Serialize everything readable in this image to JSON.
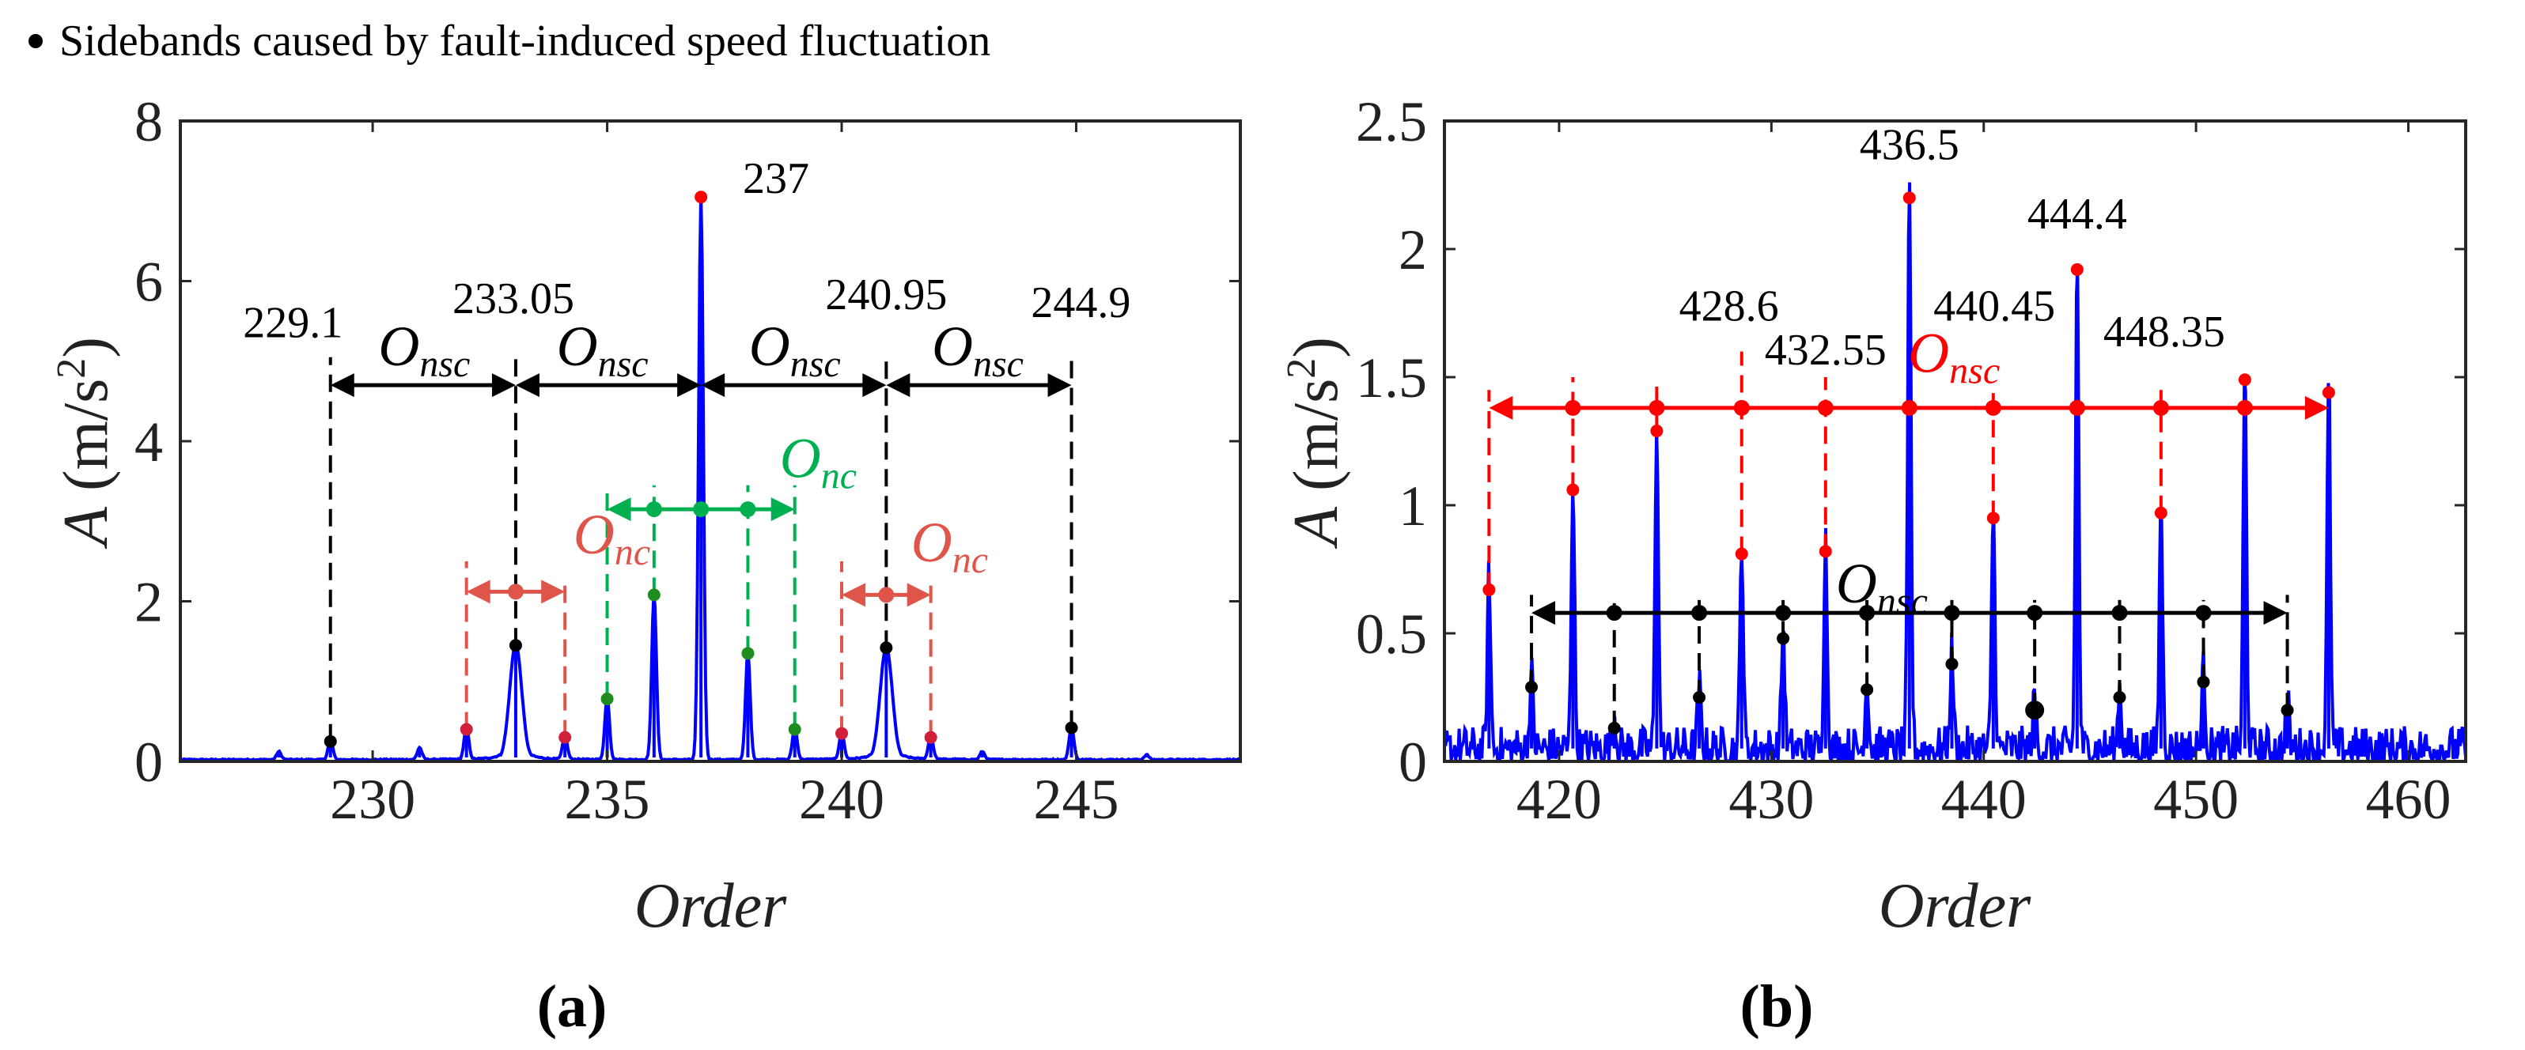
{
  "legend": {
    "text": "Sidebands caused by fault-induced speed fluctuation",
    "marker_color": "#000000"
  },
  "colors": {
    "spectrum": "#0000ff",
    "black": "#000000",
    "coral": "#e0554a",
    "crimson": "#d0203a",
    "green": "#00b050",
    "darkgreen": "#1e8c1e",
    "red": "#ff0000"
  },
  "chart_data": [
    {
      "type": "line",
      "panel": "a",
      "caption": "(a)",
      "xlabel": "Order",
      "ylabel": {
        "main": "A",
        "unit": "(m/s",
        "sup": "2",
        "close": ")"
      },
      "xlim": [
        225.9,
        248.5
      ],
      "ylim": [
        0,
        8
      ],
      "xticks": [
        230,
        235,
        240,
        245
      ],
      "xtick_labels": [
        "230",
        "235",
        "240",
        "245"
      ],
      "yticks": [
        0,
        2,
        4,
        6,
        8
      ],
      "ytick_labels": [
        "0",
        "2",
        "4",
        "6",
        "8"
      ],
      "noise_level": 0.03,
      "peaks": [
        {
          "x": 228.0,
          "y": 0.1
        },
        {
          "x": 229.1,
          "y": 0.25,
          "marker": "black"
        },
        {
          "x": 231.0,
          "y": 0.15
        },
        {
          "x": 232.0,
          "y": 0.4,
          "marker": "crimson"
        },
        {
          "x": 233.05,
          "y": 1.45,
          "marker": "black",
          "wide": true
        },
        {
          "x": 234.1,
          "y": 0.3,
          "marker": "crimson"
        },
        {
          "x": 235.0,
          "y": 0.78,
          "marker": "darkgreen"
        },
        {
          "x": 236.0,
          "y": 2.08,
          "marker": "darkgreen"
        },
        {
          "x": 237.0,
          "y": 7.05,
          "marker": "red"
        },
        {
          "x": 238.0,
          "y": 1.35,
          "marker": "darkgreen"
        },
        {
          "x": 239.0,
          "y": 0.4,
          "marker": "darkgreen"
        },
        {
          "x": 240.0,
          "y": 0.35,
          "marker": "crimson"
        },
        {
          "x": 240.95,
          "y": 1.42,
          "marker": "black",
          "wide": true
        },
        {
          "x": 241.9,
          "y": 0.3,
          "marker": "crimson"
        },
        {
          "x": 243.0,
          "y": 0.1
        },
        {
          "x": 244.9,
          "y": 0.42,
          "marker": "black"
        },
        {
          "x": 246.5,
          "y": 0.06
        }
      ],
      "dashed_lines": [
        {
          "x": 229.1,
          "y0": 0.25,
          "y1": 5.05,
          "color": "black"
        },
        {
          "x": 233.05,
          "y0": 1.45,
          "y1": 5.05,
          "color": "black"
        },
        {
          "x": 240.95,
          "y0": 1.42,
          "y1": 5.05,
          "color": "black"
        },
        {
          "x": 244.9,
          "y0": 0.42,
          "y1": 5.05,
          "color": "black"
        },
        {
          "x": 235.0,
          "y0": 0.78,
          "y1": 3.45,
          "color": "green"
        },
        {
          "x": 236.0,
          "y0": 2.08,
          "y1": 3.45,
          "color": "green"
        },
        {
          "x": 238.0,
          "y0": 1.35,
          "y1": 3.45,
          "color": "green"
        },
        {
          "x": 239.0,
          "y0": 0.4,
          "y1": 3.45,
          "color": "green"
        },
        {
          "x": 232.0,
          "y0": 0.4,
          "y1": 2.5,
          "color": "coral"
        },
        {
          "x": 234.1,
          "y0": 0.3,
          "y1": 2.3,
          "color": "coral"
        },
        {
          "x": 240.0,
          "y0": 0.35,
          "y1": 2.5,
          "color": "coral"
        },
        {
          "x": 241.9,
          "y0": 0.3,
          "y1": 2.3,
          "color": "coral"
        }
      ],
      "arrows": [
        {
          "from": 229.1,
          "to": 233.05,
          "y": 4.7,
          "color": "black",
          "dots": []
        },
        {
          "from": 233.05,
          "to": 237.0,
          "y": 4.7,
          "color": "black",
          "dots": []
        },
        {
          "from": 237.0,
          "to": 240.95,
          "y": 4.7,
          "color": "black",
          "dots": []
        },
        {
          "from": 240.95,
          "to": 244.9,
          "y": 4.7,
          "color": "black",
          "dots": []
        },
        {
          "from": 235.0,
          "to": 239.0,
          "y": 3.15,
          "color": "green",
          "dots": [
            236.0,
            237.0,
            238.0
          ]
        },
        {
          "from": 232.0,
          "to": 234.1,
          "y": 2.12,
          "color": "coral",
          "dots": [
            233.05
          ]
        },
        {
          "from": 240.0,
          "to": 241.9,
          "y": 2.08,
          "color": "coral",
          "dots": [
            240.95
          ]
        }
      ],
      "value_labels": [
        {
          "text": "229.1",
          "x": 228.3,
          "y": 5.3
        },
        {
          "text": "233.05",
          "x": 233.0,
          "y": 5.6
        },
        {
          "text": "240.95",
          "x": 240.95,
          "y": 5.65
        },
        {
          "text": "244.9",
          "x": 245.1,
          "y": 5.55
        },
        {
          "text": "237",
          "x": 238.6,
          "y": 7.1,
          "big": true
        }
      ],
      "o_labels": [
        {
          "main": "O",
          "sub": "nsc",
          "x": 231.1,
          "y": 4.95,
          "color": "black"
        },
        {
          "main": "O",
          "sub": "nsc",
          "x": 234.9,
          "y": 4.95,
          "color": "black"
        },
        {
          "main": "O",
          "sub": "nsc",
          "x": 239.0,
          "y": 4.95,
          "color": "black"
        },
        {
          "main": "O",
          "sub": "nsc",
          "x": 242.9,
          "y": 4.95,
          "color": "black"
        },
        {
          "main": "O",
          "sub": "nc",
          "x": 239.5,
          "y": 3.55,
          "color": "green"
        },
        {
          "main": "O",
          "sub": "nc",
          "x": 235.1,
          "y": 2.6,
          "color": "coral"
        },
        {
          "main": "O",
          "sub": "nc",
          "x": 242.3,
          "y": 2.5,
          "color": "coral"
        }
      ]
    },
    {
      "type": "line",
      "panel": "b",
      "caption": "(b)",
      "xlabel": "Order",
      "ylabel": {
        "main": "A",
        "unit": "(m/s",
        "sup": "2",
        "close": ")"
      },
      "xlim": [
        414.6,
        462.7
      ],
      "ylim": [
        0,
        2.5
      ],
      "xticks": [
        420,
        430,
        440,
        450,
        460
      ],
      "xtick_labels": [
        "420",
        "430",
        "440",
        "450",
        "460"
      ],
      "yticks": [
        0,
        0.5,
        1,
        1.5,
        2,
        2.5
      ],
      "ytick_labels": [
        "0",
        "0.5",
        "1",
        "1.5",
        "2",
        "2.5"
      ],
      "noise_level": 0.1,
      "peaks": [
        {
          "x": 416.7,
          "y": 0.67,
          "marker": "red"
        },
        {
          "x": 418.7,
          "y": 0.29,
          "marker": "black"
        },
        {
          "x": 420.65,
          "y": 1.06,
          "marker": "red"
        },
        {
          "x": 422.6,
          "y": 0.13,
          "marker": "black"
        },
        {
          "x": 424.6,
          "y": 1.29,
          "marker": "red"
        },
        {
          "x": 426.6,
          "y": 0.25,
          "marker": "black"
        },
        {
          "x": 428.6,
          "y": 0.81,
          "marker": "red"
        },
        {
          "x": 430.55,
          "y": 0.48,
          "marker": "black"
        },
        {
          "x": 432.55,
          "y": 0.82,
          "marker": "red"
        },
        {
          "x": 434.5,
          "y": 0.28,
          "marker": "black"
        },
        {
          "x": 436.5,
          "y": 2.2,
          "marker": "red"
        },
        {
          "x": 438.5,
          "y": 0.38,
          "marker": "black"
        },
        {
          "x": 440.45,
          "y": 0.95,
          "marker": "red"
        },
        {
          "x": 442.4,
          "y": 0.2,
          "marker": "black",
          "big": true
        },
        {
          "x": 444.4,
          "y": 1.92,
          "marker": "red"
        },
        {
          "x": 446.4,
          "y": 0.25,
          "marker": "black"
        },
        {
          "x": 448.35,
          "y": 0.97,
          "marker": "red"
        },
        {
          "x": 450.35,
          "y": 0.31,
          "marker": "black"
        },
        {
          "x": 452.3,
          "y": 1.49,
          "marker": "red"
        },
        {
          "x": 454.3,
          "y": 0.2,
          "marker": "black"
        },
        {
          "x": 456.25,
          "y": 1.44,
          "marker": "red"
        }
      ],
      "dashed_lines": [
        {
          "x": 416.7,
          "y0": 0.67,
          "y1": 1.45,
          "color": "red"
        },
        {
          "x": 420.65,
          "y0": 1.06,
          "y1": 1.5,
          "color": "red"
        },
        {
          "x": 424.6,
          "y0": 1.29,
          "y1": 1.5,
          "color": "red"
        },
        {
          "x": 428.6,
          "y0": 0.81,
          "y1": 1.6,
          "color": "red"
        },
        {
          "x": 432.55,
          "y0": 0.82,
          "y1": 1.5,
          "color": "red"
        },
        {
          "x": 440.45,
          "y0": 0.95,
          "y1": 1.45,
          "color": "red"
        },
        {
          "x": 448.35,
          "y0": 0.97,
          "y1": 1.45,
          "color": "red"
        },
        {
          "x": 418.7,
          "y0": 0.29,
          "y1": 0.65,
          "color": "black"
        },
        {
          "x": 422.6,
          "y0": 0.13,
          "y1": 0.63,
          "color": "black"
        },
        {
          "x": 426.6,
          "y0": 0.25,
          "y1": 0.63,
          "color": "black"
        },
        {
          "x": 430.55,
          "y0": 0.48,
          "y1": 0.63,
          "color": "black"
        },
        {
          "x": 434.5,
          "y0": 0.28,
          "y1": 0.63,
          "color": "black"
        },
        {
          "x": 438.5,
          "y0": 0.38,
          "y1": 0.63,
          "color": "black"
        },
        {
          "x": 442.4,
          "y0": 0.2,
          "y1": 0.63,
          "color": "black"
        },
        {
          "x": 446.4,
          "y0": 0.25,
          "y1": 0.63,
          "color": "black"
        },
        {
          "x": 450.35,
          "y0": 0.31,
          "y1": 0.63,
          "color": "black"
        },
        {
          "x": 454.3,
          "y0": 0.2,
          "y1": 0.65,
          "color": "black"
        }
      ],
      "arrows": [
        {
          "from": 416.7,
          "to": 456.25,
          "y": 1.38,
          "color": "red",
          "dots": [
            420.65,
            424.6,
            428.6,
            432.55,
            436.5,
            440.45,
            444.4,
            448.35,
            452.3
          ]
        },
        {
          "from": 418.7,
          "to": 454.3,
          "y": 0.58,
          "color": "black",
          "dots": [
            422.6,
            426.6,
            430.55,
            434.5,
            438.5,
            442.4,
            446.4,
            450.35
          ]
        }
      ],
      "value_labels": [
        {
          "text": "436.5",
          "x": 436.5,
          "y": 2.35
        },
        {
          "text": "444.4",
          "x": 444.4,
          "y": 2.08
        },
        {
          "text": "428.6",
          "x": 428.0,
          "y": 1.72
        },
        {
          "text": "432.55",
          "x": 432.55,
          "y": 1.55
        },
        {
          "text": "440.45",
          "x": 440.5,
          "y": 1.72
        },
        {
          "text": "448.35",
          "x": 448.5,
          "y": 1.62
        }
      ],
      "o_labels": [
        {
          "main": "O",
          "sub": "nsc",
          "x": 438.6,
          "y": 1.52,
          "color": "red"
        },
        {
          "main": "O",
          "sub": "nsc",
          "x": 435.2,
          "y": 0.62,
          "color": "black"
        }
      ]
    }
  ]
}
